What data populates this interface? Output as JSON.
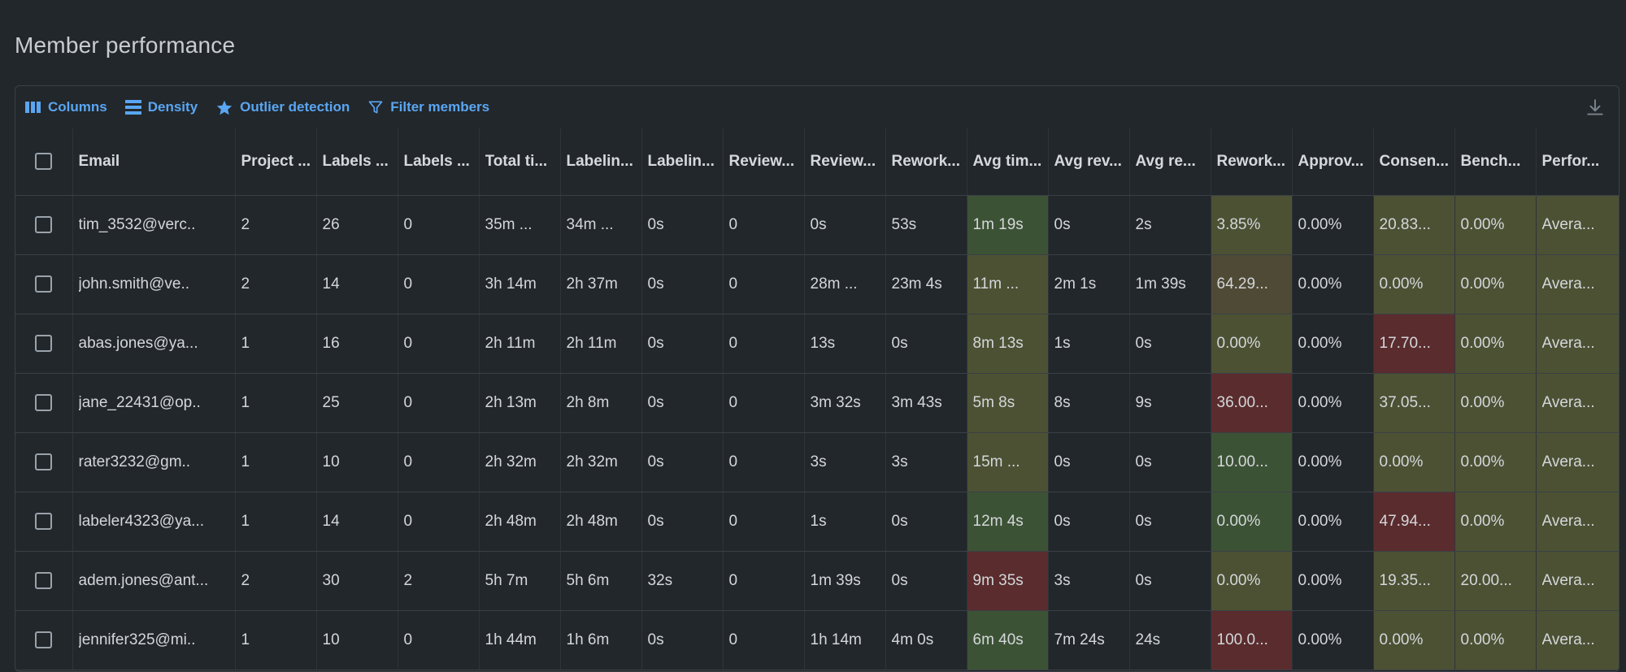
{
  "page": {
    "title": "Member performance"
  },
  "toolbar": {
    "columns_label": "Columns",
    "density_label": "Density",
    "outlier_label": "Outlier detection",
    "filter_label": "Filter members"
  },
  "colors": {
    "accent": "#5aa6f2",
    "good": "#3c5235",
    "average": "#4c5134",
    "warn": "#4e4a35",
    "bad": "#5a2c2e"
  },
  "table": {
    "headers": [
      "Email",
      "Project ...",
      "Labels ...",
      "Labels ...",
      "Total ti...",
      "Labelin...",
      "Labelin...",
      "Review...",
      "Review...",
      "Rework...",
      "Avg tim...",
      "Avg rev...",
      "Avg re...",
      "Rework...",
      "Approv...",
      "Consen...",
      "Bench...",
      "Perfor..."
    ],
    "rows": [
      {
        "cells": [
          "tim_3532@verc..",
          "2",
          "26",
          "0",
          "35m ...",
          "34m ...",
          "0s",
          "0",
          "0s",
          "53s",
          "1m 19s",
          "0s",
          "2s",
          "3.85%",
          "0.00%",
          "20.83...",
          "0.00%",
          "Avera..."
        ],
        "tones": [
          "",
          "",
          "",
          "",
          "",
          "",
          "",
          "",
          "",
          "",
          "g",
          "",
          "",
          "y",
          "",
          "y",
          "y",
          "y"
        ]
      },
      {
        "cells": [
          "john.smith@ve..",
          "2",
          "14",
          "0",
          "3h 14m",
          "2h 37m",
          "0s",
          "0",
          "28m ...",
          "23m 4s",
          "11m ...",
          "2m 1s",
          "1m 39s",
          "64.29...",
          "0.00%",
          "0.00%",
          "0.00%",
          "Avera..."
        ],
        "tones": [
          "",
          "",
          "",
          "",
          "",
          "",
          "",
          "",
          "",
          "",
          "y",
          "",
          "",
          "o",
          "",
          "y",
          "y",
          "y"
        ]
      },
      {
        "cells": [
          "abas.jones@ya...",
          "1",
          "16",
          "0",
          "2h 11m",
          "2h 11m",
          "0s",
          "0",
          "13s",
          "0s",
          "8m 13s",
          "1s",
          "0s",
          "0.00%",
          "0.00%",
          "17.70...",
          "0.00%",
          "Avera..."
        ],
        "tones": [
          "",
          "",
          "",
          "",
          "",
          "",
          "",
          "",
          "",
          "",
          "y",
          "",
          "",
          "y",
          "",
          "r",
          "y",
          "y"
        ]
      },
      {
        "cells": [
          "jane_22431@op..",
          "1",
          "25",
          "0",
          "2h 13m",
          "2h 8m",
          "0s",
          "0",
          "3m 32s",
          "3m 43s",
          "5m 8s",
          "8s",
          "9s",
          "36.00...",
          "0.00%",
          "37.05...",
          "0.00%",
          "Avera..."
        ],
        "tones": [
          "",
          "",
          "",
          "",
          "",
          "",
          "",
          "",
          "",
          "",
          "y",
          "",
          "",
          "r",
          "",
          "y",
          "y",
          "y"
        ]
      },
      {
        "cells": [
          "rater3232@gm..",
          "1",
          "10",
          "0",
          "2h 32m",
          "2h 32m",
          "0s",
          "0",
          "3s",
          "3s",
          "15m ...",
          "0s",
          "0s",
          "10.00...",
          "0.00%",
          "0.00%",
          "0.00%",
          "Avera..."
        ],
        "tones": [
          "",
          "",
          "",
          "",
          "",
          "",
          "",
          "",
          "",
          "",
          "y",
          "",
          "",
          "g",
          "",
          "y",
          "y",
          "y"
        ]
      },
      {
        "cells": [
          "labeler4323@ya...",
          "1",
          "14",
          "0",
          "2h 48m",
          "2h 48m",
          "0s",
          "0",
          "1s",
          "0s",
          "12m 4s",
          "0s",
          "0s",
          "0.00%",
          "0.00%",
          "47.94...",
          "0.00%",
          "Avera..."
        ],
        "tones": [
          "",
          "",
          "",
          "",
          "",
          "",
          "",
          "",
          "",
          "",
          "g",
          "",
          "",
          "g",
          "",
          "r",
          "y",
          "y"
        ]
      },
      {
        "cells": [
          "adem.jones@ant...",
          "2",
          "30",
          "2",
          "5h 7m",
          "5h 6m",
          "32s",
          "0",
          "1m 39s",
          "0s",
          "9m 35s",
          "3s",
          "0s",
          "0.00%",
          "0.00%",
          "19.35...",
          "20.00...",
          "Avera..."
        ],
        "tones": [
          "",
          "",
          "",
          "",
          "",
          "",
          "",
          "",
          "",
          "",
          "r",
          "",
          "",
          "y",
          "",
          "y",
          "y",
          "y"
        ]
      },
      {
        "cells": [
          "jennifer325@mi..",
          "1",
          "10",
          "0",
          "1h 44m",
          "1h 6m",
          "0s",
          "0",
          "1h 14m",
          "4m 0s",
          "6m 40s",
          "7m 24s",
          "24s",
          "100.0...",
          "0.00%",
          "0.00%",
          "0.00%",
          "Avera..."
        ],
        "tones": [
          "",
          "",
          "",
          "",
          "",
          "",
          "",
          "",
          "",
          "",
          "g",
          "",
          "",
          "r",
          "",
          "y",
          "y",
          "y"
        ]
      }
    ]
  }
}
